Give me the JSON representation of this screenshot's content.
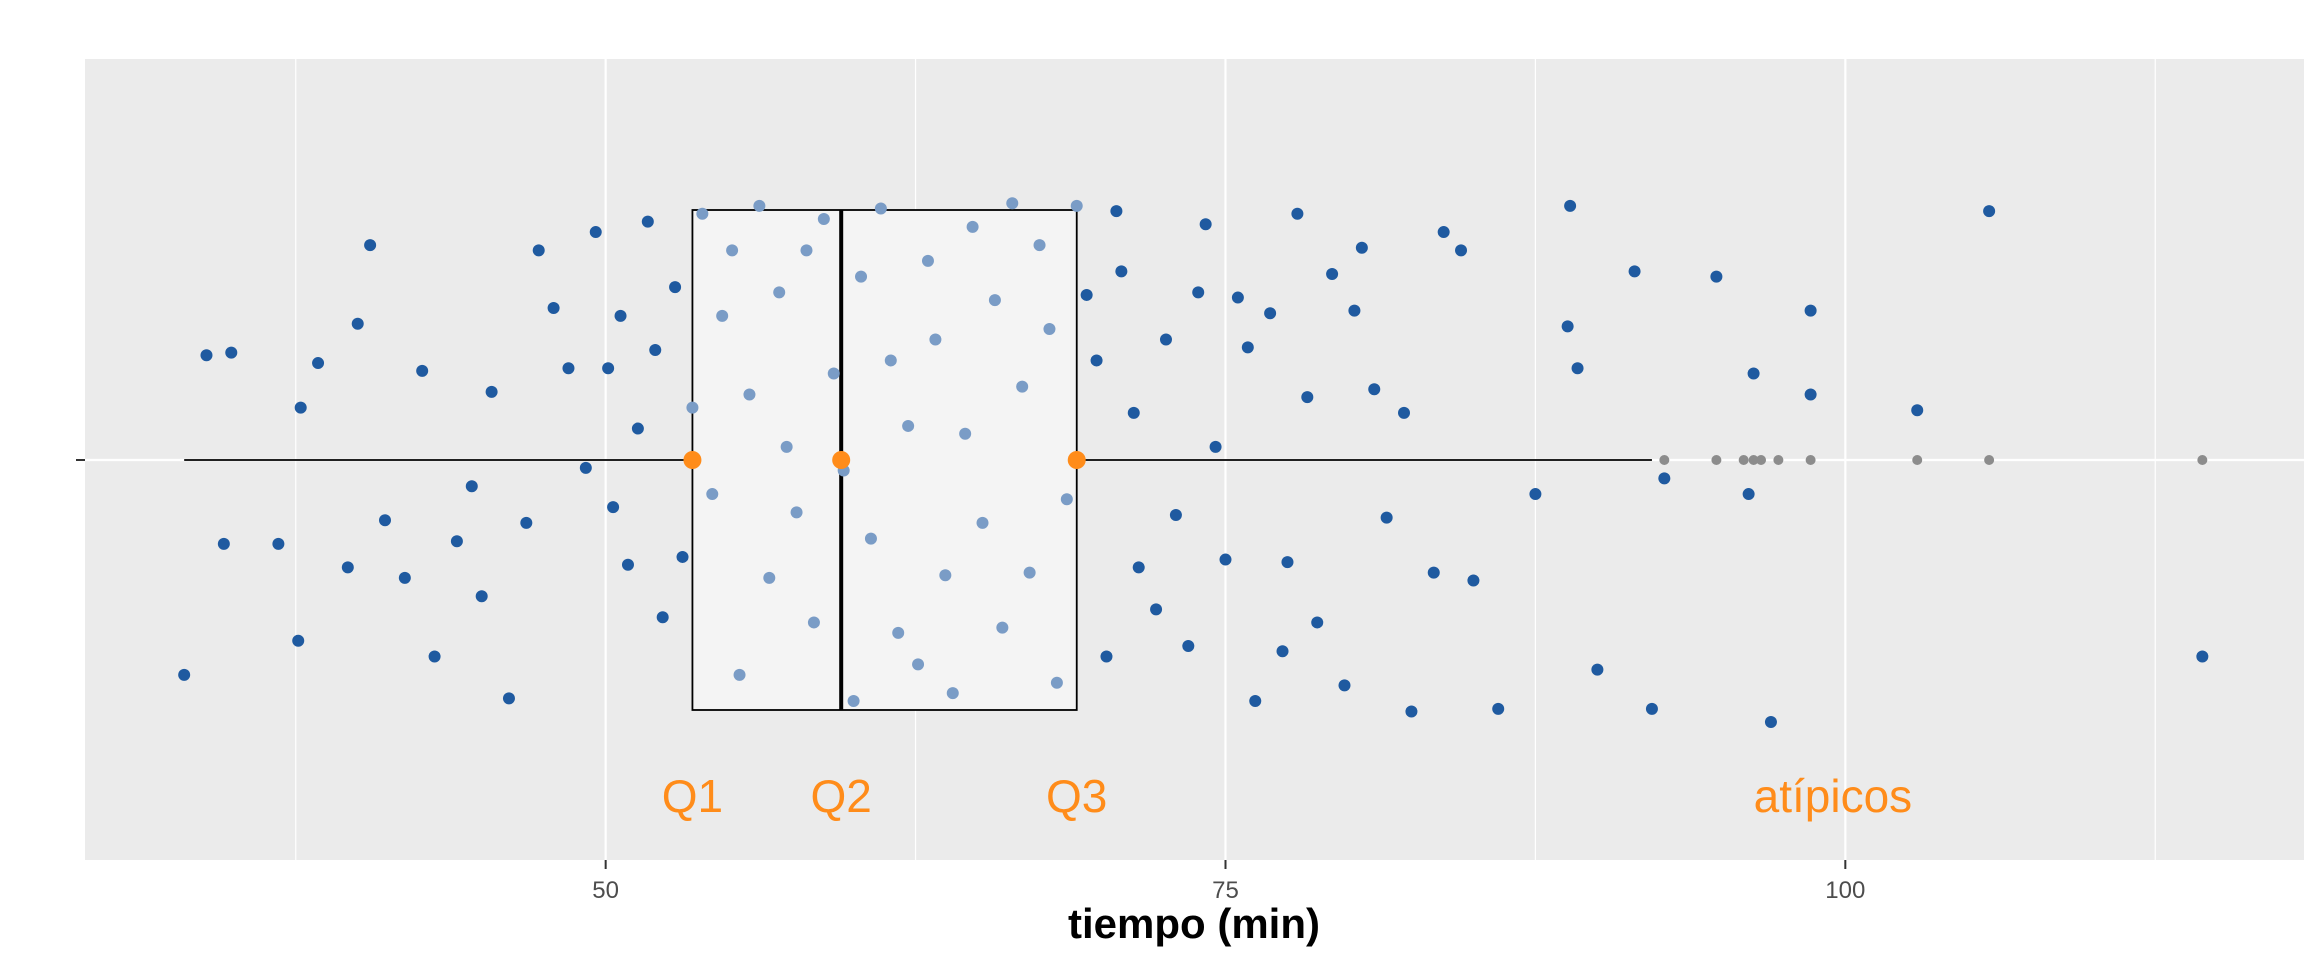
{
  "chart_data": {
    "type": "boxplot-jitter",
    "title": "",
    "xlabel": "tiempo (min)",
    "ylabel": "",
    "xlim": [
      29,
      118.5
    ],
    "x_ticks": [
      50,
      75,
      100
    ],
    "x_tick_labels": [
      "50",
      "75",
      "100"
    ],
    "grid": true,
    "colors": {
      "panel": "#ebebeb",
      "grid": "#ffffff",
      "points": "#1f5aa0",
      "points_in_box": "#7a9cc6",
      "box_fill": "#f4f4f4",
      "quartile_markers": "#ff8c1a",
      "outliers": "#8c8c8c",
      "annotation": "#ff8c1a"
    },
    "box": {
      "min": 33,
      "q1": 53.5,
      "median": 59.5,
      "q3": 69,
      "whisker_high": 92.2
    },
    "outliers": [
      92.7,
      94.8,
      95.9,
      96.3,
      96.6,
      97.3,
      98.6,
      102.9,
      105.8,
      114.4
    ],
    "annotations": [
      {
        "text": "Q1",
        "x": 53.5
      },
      {
        "text": "Q2",
        "x": 59.5
      },
      {
        "text": "Q3",
        "x": 69
      },
      {
        "text": "atípicos",
        "x": 99.5
      }
    ],
    "jitter_points": [
      [
        33.0,
        -0.82
      ],
      [
        33.9,
        0.4
      ],
      [
        34.9,
        0.41
      ],
      [
        34.6,
        -0.32
      ],
      [
        36.8,
        -0.32
      ],
      [
        37.7,
        0.2
      ],
      [
        37.6,
        -0.69
      ],
      [
        38.4,
        0.37
      ],
      [
        39.6,
        -0.41
      ],
      [
        40.0,
        0.52
      ],
      [
        40.5,
        0.82
      ],
      [
        41.1,
        -0.23
      ],
      [
        41.9,
        -0.45
      ],
      [
        42.6,
        0.34
      ],
      [
        43.1,
        -0.75
      ],
      [
        44.0,
        -0.31
      ],
      [
        45.4,
        0.26
      ],
      [
        44.6,
        -0.1
      ],
      [
        45.0,
        -0.52
      ],
      [
        46.1,
        -0.91
      ],
      [
        46.8,
        -0.24
      ],
      [
        47.3,
        0.8
      ],
      [
        47.9,
        0.58
      ],
      [
        48.5,
        0.35
      ],
      [
        49.2,
        -0.03
      ],
      [
        49.6,
        0.87
      ],
      [
        50.1,
        0.35
      ],
      [
        50.6,
        0.55
      ],
      [
        50.3,
        -0.18
      ],
      [
        50.9,
        -0.4
      ],
      [
        51.3,
        0.12
      ],
      [
        51.7,
        0.91
      ],
      [
        52.0,
        0.42
      ],
      [
        52.3,
        -0.6
      ],
      [
        52.8,
        0.66
      ],
      [
        53.1,
        -0.37
      ],
      [
        53.5,
        0.2
      ],
      [
        53.9,
        0.94
      ],
      [
        54.3,
        -0.13
      ],
      [
        54.7,
        0.55
      ],
      [
        55.1,
        0.8
      ],
      [
        55.4,
        -0.82
      ],
      [
        55.8,
        0.25
      ],
      [
        56.2,
        0.97
      ],
      [
        56.6,
        -0.45
      ],
      [
        57.0,
        0.64
      ],
      [
        57.3,
        0.05
      ],
      [
        57.7,
        -0.2
      ],
      [
        58.1,
        0.8
      ],
      [
        58.4,
        -0.62
      ],
      [
        58.8,
        0.92
      ],
      [
        59.2,
        0.33
      ],
      [
        59.6,
        -0.04
      ],
      [
        60.0,
        -0.92
      ],
      [
        60.3,
        0.7
      ],
      [
        60.7,
        -0.3
      ],
      [
        61.1,
        0.96
      ],
      [
        61.5,
        0.38
      ],
      [
        61.8,
        -0.66
      ],
      [
        62.2,
        0.13
      ],
      [
        62.6,
        -0.78
      ],
      [
        63.0,
        0.76
      ],
      [
        63.3,
        0.46
      ],
      [
        63.7,
        -0.44
      ],
      [
        64.0,
        -0.89
      ],
      [
        64.5,
        0.1
      ],
      [
        64.8,
        0.89
      ],
      [
        65.2,
        -0.24
      ],
      [
        65.7,
        0.61
      ],
      [
        66.0,
        -0.64
      ],
      [
        66.4,
        0.98
      ],
      [
        66.8,
        0.28
      ],
      [
        67.1,
        -0.43
      ],
      [
        67.5,
        0.82
      ],
      [
        67.9,
        0.5
      ],
      [
        68.2,
        -0.85
      ],
      [
        68.6,
        -0.15
      ],
      [
        69.0,
        0.97
      ],
      [
        69.4,
        0.63
      ],
      [
        69.8,
        0.38
      ],
      [
        70.2,
        -0.75
      ],
      [
        70.6,
        0.95
      ],
      [
        70.8,
        0.72
      ],
      [
        71.3,
        0.18
      ],
      [
        71.5,
        -0.41
      ],
      [
        72.2,
        -0.57
      ],
      [
        72.6,
        0.46
      ],
      [
        73.0,
        -0.21
      ],
      [
        73.5,
        -0.71
      ],
      [
        73.9,
        0.64
      ],
      [
        74.2,
        0.9
      ],
      [
        74.6,
        0.05
      ],
      [
        75.0,
        -0.38
      ],
      [
        75.5,
        0.62
      ],
      [
        75.9,
        0.43
      ],
      [
        76.2,
        -0.92
      ],
      [
        76.8,
        0.56
      ],
      [
        77.3,
        -0.73
      ],
      [
        77.5,
        -0.39
      ],
      [
        77.9,
        0.94
      ],
      [
        78.3,
        0.24
      ],
      [
        78.7,
        -0.62
      ],
      [
        79.3,
        0.71
      ],
      [
        79.8,
        -0.86
      ],
      [
        80.2,
        0.57
      ],
      [
        80.5,
        0.81
      ],
      [
        81.0,
        0.27
      ],
      [
        81.5,
        -0.22
      ],
      [
        82.2,
        0.18
      ],
      [
        82.5,
        -0.96
      ],
      [
        83.4,
        -0.43
      ],
      [
        83.8,
        0.87
      ],
      [
        84.5,
        0.8
      ],
      [
        85.0,
        -0.46
      ],
      [
        86.0,
        -0.95
      ],
      [
        87.5,
        -0.13
      ],
      [
        88.9,
        0.97
      ],
      [
        88.8,
        0.51
      ],
      [
        89.2,
        0.35
      ],
      [
        90.0,
        -0.8
      ],
      [
        91.5,
        0.72
      ],
      [
        92.2,
        -0.95
      ],
      [
        92.7,
        -0.07
      ],
      [
        94.8,
        0.7
      ],
      [
        96.3,
        0.33
      ],
      [
        96.1,
        -0.13
      ],
      [
        97.0,
        -1.0
      ],
      [
        98.6,
        0.57
      ],
      [
        98.6,
        0.25
      ],
      [
        102.9,
        0.19
      ],
      [
        105.8,
        0.95
      ],
      [
        114.4,
        -0.75
      ]
    ]
  }
}
